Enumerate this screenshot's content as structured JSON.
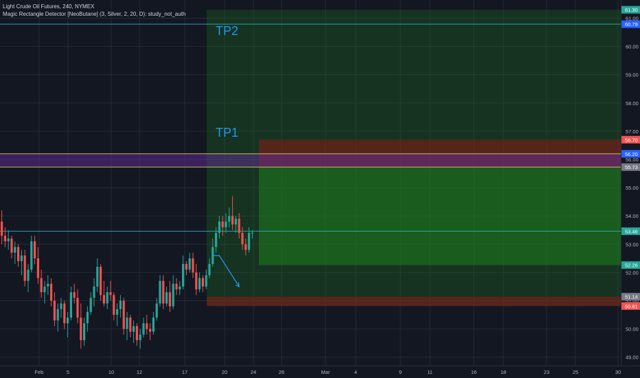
{
  "legend": {
    "line1": "Light Crude Oil Futures, 240, NYMEX",
    "line2": "Magic Rectangle Detector [NeoButane] (3, Silver, 2, 20, D): study_not_auth"
  },
  "colors": {
    "background": "#131722",
    "grid": "#262a36",
    "candle_up": "#26a69a",
    "candle_down": "#ef5350",
    "target_zone": "#1e7e1e",
    "stop_zone": "#8b1a1a",
    "purple_zone": "#6a2fa3",
    "tp_text": "#2196f3",
    "price_line": "#2ab7c9",
    "yellow_line": "#e8d16a"
  },
  "chart_data": {
    "type": "candlestick",
    "title": "Light Crude Oil Futures, 240, NYMEX",
    "y_ticks": [
      "61.00",
      "60.00",
      "59.00",
      "58.00",
      "57.00",
      "56.00",
      "55.00",
      "54.00",
      "53.00",
      "52.00",
      "51.00",
      "50.00",
      "49.00"
    ],
    "ylim": [
      48.7,
      61.5
    ],
    "x_ticks": [
      "Feb",
      "5",
      "10",
      "12",
      "17",
      "20",
      "24",
      "26",
      "Mar",
      "4",
      "9",
      "11",
      "16",
      "18",
      "23",
      "25",
      "30"
    ],
    "price_badges": [
      {
        "value": "61.30",
        "color": "#26a69a"
      },
      {
        "value": "60.79",
        "color": "#2962ff"
      },
      {
        "value": "56.70",
        "color": "#ef5350"
      },
      {
        "value": "56.20",
        "color": "#2962ff"
      },
      {
        "value": "55.73",
        "color": "#787b86"
      },
      {
        "value": "53.46",
        "color": "#26a69a"
      },
      {
        "value": "52.26",
        "color": "#26a69a"
      },
      {
        "value": "51.14",
        "color": "#787b86"
      },
      {
        "value": "50.81",
        "color": "#ef5350"
      }
    ],
    "annotations": [
      {
        "text": "TP2",
        "price": 60.55
      },
      {
        "text": "TP1",
        "price": 56.95
      }
    ],
    "zones": [
      {
        "name": "tp2-zone",
        "top": 61.3,
        "bottom": 50.81,
        "kind": "target-faint"
      },
      {
        "name": "target-zone",
        "top": 55.73,
        "bottom": 52.26,
        "kind": "target"
      },
      {
        "name": "stop-zone-upper",
        "top": 56.7,
        "bottom": 55.73,
        "kind": "stop"
      },
      {
        "name": "stop-zone-lower",
        "top": 51.14,
        "bottom": 50.81,
        "kind": "stop"
      },
      {
        "name": "purple-zone",
        "top": 56.2,
        "bottom": 55.73,
        "kind": "purple"
      }
    ],
    "hlines": [
      {
        "price": 60.79,
        "color": "#2ab7c9"
      },
      {
        "price": 56.2,
        "color": "#e8d16a"
      },
      {
        "price": 55.73,
        "color": "#e8d16a"
      },
      {
        "price": 53.46,
        "color": "#2ab7c9"
      }
    ],
    "candles": [
      [
        53.8,
        54.2,
        53.0,
        53.3
      ],
      [
        53.3,
        53.6,
        52.9,
        53.1
      ],
      [
        53.1,
        53.5,
        52.8,
        53.2
      ],
      [
        53.2,
        53.3,
        52.5,
        52.7
      ],
      [
        52.7,
        53.1,
        52.3,
        52.9
      ],
      [
        52.9,
        53.0,
        52.2,
        52.4
      ],
      [
        52.4,
        52.8,
        51.9,
        52.6
      ],
      [
        52.6,
        52.8,
        51.5,
        51.7
      ],
      [
        51.7,
        52.3,
        51.3,
        52.1
      ],
      [
        52.1,
        53.3,
        52.0,
        53.1
      ],
      [
        53.1,
        53.3,
        52.3,
        52.5
      ],
      [
        52.5,
        52.9,
        51.6,
        51.8
      ],
      [
        51.8,
        52.1,
        51.1,
        51.3
      ],
      [
        51.3,
        51.7,
        50.9,
        51.5
      ],
      [
        51.5,
        51.9,
        51.2,
        51.6
      ],
      [
        51.6,
        51.8,
        50.8,
        51.0
      ],
      [
        51.0,
        51.3,
        50.1,
        50.3
      ],
      [
        50.3,
        50.9,
        49.9,
        50.7
      ],
      [
        50.7,
        51.1,
        50.4,
        50.9
      ],
      [
        50.9,
        51.0,
        50.0,
        50.2
      ],
      [
        50.2,
        50.6,
        49.7,
        50.4
      ],
      [
        50.4,
        51.5,
        50.3,
        51.3
      ],
      [
        51.3,
        51.6,
        50.9,
        51.1
      ],
      [
        51.1,
        51.4,
        50.2,
        50.4
      ],
      [
        50.4,
        50.9,
        49.3,
        49.6
      ],
      [
        49.6,
        50.4,
        49.4,
        50.2
      ],
      [
        50.2,
        50.8,
        49.9,
        50.6
      ],
      [
        50.6,
        51.3,
        50.5,
        51.1
      ],
      [
        51.1,
        51.8,
        50.8,
        51.5
      ],
      [
        51.5,
        52.5,
        51.3,
        52.2
      ],
      [
        52.2,
        52.3,
        51.0,
        51.2
      ],
      [
        51.2,
        51.7,
        50.8,
        50.9
      ],
      [
        50.9,
        51.5,
        50.7,
        51.3
      ],
      [
        51.3,
        51.7,
        51.0,
        51.2
      ],
      [
        51.2,
        51.3,
        50.3,
        50.5
      ],
      [
        50.5,
        50.9,
        50.1,
        50.7
      ],
      [
        50.7,
        51.2,
        50.4,
        51.0
      ],
      [
        51.0,
        51.1,
        49.8,
        50.0
      ],
      [
        50.0,
        50.6,
        49.6,
        50.4
      ],
      [
        50.4,
        50.5,
        49.7,
        49.9
      ],
      [
        49.9,
        50.3,
        49.5,
        50.1
      ],
      [
        50.1,
        50.2,
        49.4,
        49.6
      ],
      [
        49.6,
        50.0,
        49.3,
        49.8
      ],
      [
        49.8,
        50.4,
        49.7,
        50.2
      ],
      [
        50.2,
        50.5,
        49.8,
        50.0
      ],
      [
        50.0,
        50.2,
        49.6,
        49.9
      ],
      [
        49.9,
        50.6,
        49.8,
        50.4
      ],
      [
        50.4,
        51.1,
        50.3,
        50.9
      ],
      [
        50.9,
        51.9,
        50.8,
        51.7
      ],
      [
        51.7,
        51.9,
        50.7,
        50.9
      ],
      [
        50.9,
        51.5,
        50.8,
        51.3
      ],
      [
        51.3,
        51.7,
        50.6,
        50.8
      ],
      [
        50.8,
        51.9,
        50.7,
        51.6
      ],
      [
        51.6,
        51.8,
        51.2,
        51.4
      ],
      [
        51.4,
        51.7,
        51.2,
        51.5
      ],
      [
        51.5,
        52.6,
        51.4,
        52.3
      ],
      [
        52.3,
        52.4,
        51.9,
        52.1
      ],
      [
        52.1,
        52.7,
        52.0,
        52.5
      ],
      [
        52.5,
        52.7,
        51.8,
        52.0
      ],
      [
        52.0,
        52.3,
        51.2,
        51.4
      ],
      [
        51.4,
        52.0,
        51.3,
        51.8
      ],
      [
        51.8,
        51.9,
        51.3,
        51.5
      ],
      [
        51.5,
        52.1,
        51.4,
        51.9
      ],
      [
        51.9,
        52.5,
        51.8,
        52.3
      ],
      [
        52.3,
        53.2,
        52.2,
        52.9
      ],
      [
        52.9,
        53.6,
        52.7,
        53.4
      ],
      [
        53.4,
        54.0,
        53.2,
        53.8
      ],
      [
        53.8,
        54.0,
        53.3,
        53.6
      ],
      [
        53.6,
        54.1,
        53.4,
        53.8
      ],
      [
        53.8,
        54.3,
        53.6,
        54.0
      ],
      [
        54.0,
        54.7,
        53.5,
        53.7
      ],
      [
        53.7,
        54.0,
        53.4,
        53.9
      ],
      [
        53.9,
        54.1,
        53.2,
        53.4
      ],
      [
        53.4,
        53.6,
        52.8,
        53.0
      ],
      [
        53.0,
        53.2,
        52.6,
        52.8
      ],
      [
        52.8,
        53.6,
        52.7,
        53.4
      ],
      [
        53.4,
        53.5,
        53.2,
        53.4
      ]
    ],
    "arrow": {
      "from_index": 64,
      "from_price": 52.6,
      "mid_index": 66,
      "mid_price": 52.45,
      "to_index": 72,
      "to_price": 51.5
    }
  }
}
